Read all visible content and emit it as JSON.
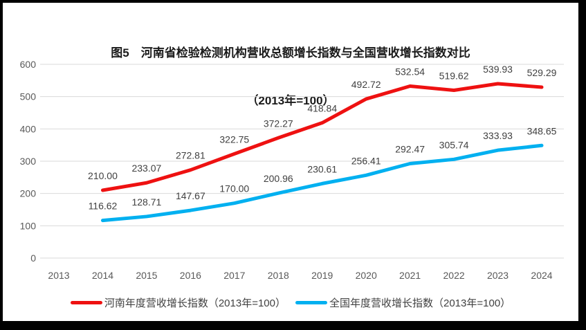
{
  "title": {
    "line1": "图5　河南省检验检测机构营收总额增长指数与全国营收增长指数对比",
    "line2": "（2013年=100）"
  },
  "chart_data": {
    "type": "line",
    "categories": [
      "2013",
      "2014",
      "2015",
      "2016",
      "2017",
      "2018",
      "2019",
      "2020",
      "2021",
      "2022",
      "2023",
      "2024"
    ],
    "series": [
      {
        "name": "河南年度营收增长指数（2013年=100）",
        "color": "#ee1111",
        "values": [
          null,
          210.0,
          233.07,
          272.81,
          322.75,
          372.27,
          418.84,
          492.72,
          532.54,
          519.62,
          539.93,
          529.29
        ]
      },
      {
        "name": "全国年度营收增长指数（2013年=100）",
        "color": "#00b0f0",
        "values": [
          null,
          116.62,
          128.71,
          147.67,
          170.0,
          200.96,
          230.61,
          256.41,
          292.47,
          305.74,
          333.93,
          348.65
        ]
      }
    ],
    "title": "图5　河南省检验检测机构营收总额增长指数与全国营收增长指数对比（2013年=100）",
    "xlabel": "",
    "ylabel": "",
    "ylim": [
      0,
      600
    ],
    "ytick_step": 100,
    "yticks": [
      0,
      100,
      200,
      300,
      400,
      500,
      600
    ],
    "grid": true,
    "data_labels": true,
    "data_label_decimals": 2,
    "legend_position": "bottom",
    "colors": {
      "gridline": "#d9d9d9",
      "tick_label": "#595959",
      "data_label": "#404040",
      "frame_border": "#000000",
      "background": "#ffffff"
    }
  },
  "legend": {
    "items": [
      {
        "label": "河南年度营收增长指数（2013年=100）",
        "color": "#ee1111"
      },
      {
        "label": "全国年度营收增长指数（2013年=100）",
        "color": "#00b0f0"
      }
    ]
  }
}
